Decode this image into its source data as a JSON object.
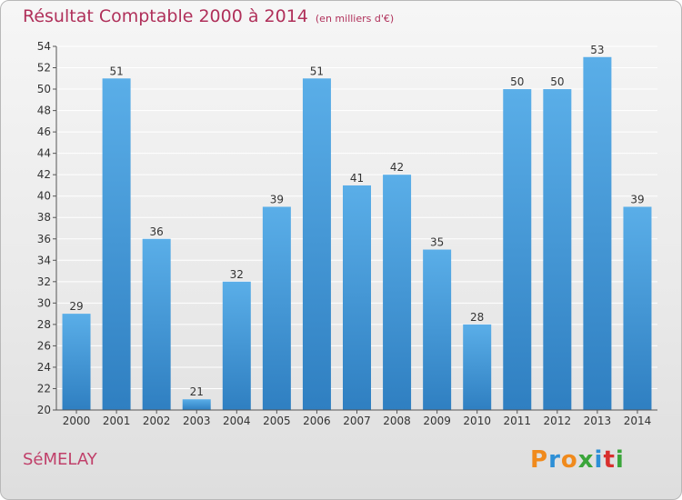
{
  "header": {
    "title": "Résultat Comptable 2000 à 2014",
    "unit": "(en milliers d'€)"
  },
  "footer": {
    "commune": "SéMELAY",
    "logo": [
      "P",
      "r",
      "o",
      "x",
      "i",
      "t",
      "i"
    ],
    "logo_colors": [
      "#f08a1c",
      "#2d8fd6",
      "#f08a1c",
      "#3aa53a",
      "#2d8fd6",
      "#d8302e",
      "#3aa53a"
    ]
  },
  "colors": {
    "bar_top": "#5aaee8",
    "bar_bottom": "#2f7fc1",
    "title": "#b0305a",
    "grid": "#ffffff",
    "axis_text": "#333333"
  },
  "chart_data": {
    "type": "bar",
    "title": "Résultat Comptable 2000 à 2014",
    "subtitle": "(en milliers d'€)",
    "xlabel": "",
    "ylabel": "",
    "categories": [
      "2000",
      "2001",
      "2002",
      "2003",
      "2004",
      "2005",
      "2006",
      "2007",
      "2008",
      "2009",
      "2010",
      "2011",
      "2012",
      "2013",
      "2014"
    ],
    "values": [
      29,
      51,
      36,
      21,
      32,
      39,
      51,
      41,
      42,
      35,
      28,
      50,
      50,
      53,
      39
    ],
    "data_labels": [
      "29",
      "51",
      "36",
      "21",
      "32",
      "39",
      "51",
      "41",
      "42",
      "35",
      "28",
      "50",
      "50",
      "53",
      "39"
    ],
    "ylim": [
      20,
      54
    ],
    "yticks": [
      "20",
      "22",
      "24",
      "26",
      "28",
      "30",
      "32",
      "34",
      "36",
      "38",
      "40",
      "42",
      "44",
      "46",
      "48",
      "50",
      "52",
      "54"
    ],
    "grid": true,
    "legend": "none"
  }
}
